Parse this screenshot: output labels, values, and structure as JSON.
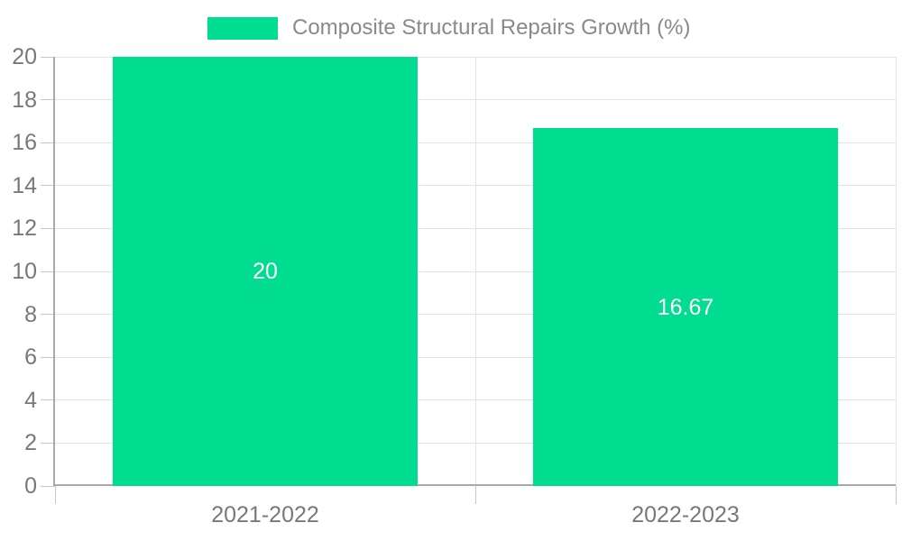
{
  "legend": {
    "label": "Composite Structural Repairs Growth (%)"
  },
  "chart_data": {
    "type": "bar",
    "title": "",
    "legend": [
      "Composite Structural Repairs Growth (%)"
    ],
    "legend_position": "top-center",
    "categories": [
      "2021-2022",
      "2022-2023"
    ],
    "values": [
      20,
      16.67
    ],
    "value_labels": [
      "20",
      "16.67"
    ],
    "xlabel": "",
    "ylabel": "",
    "ylim": [
      0,
      20
    ],
    "yticks": [
      0,
      2,
      4,
      6,
      8,
      10,
      12,
      14,
      16,
      18,
      20
    ],
    "grid": true,
    "colors": {
      "bar": "#00DD91",
      "value_label": "#FFFFFF",
      "axis_label": "#787878",
      "legend_label": "#8A8A8A",
      "gridline": "#E3E3E3",
      "axis_line": "#A9A9A9",
      "tick": "#C6C6C6",
      "background": "#FFFFFF"
    }
  }
}
